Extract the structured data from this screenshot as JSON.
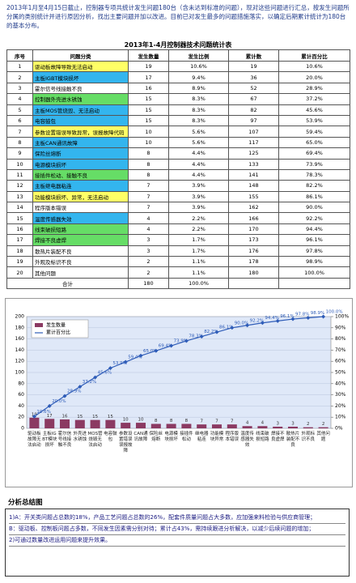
{
  "intro": "2013年1月至4月15日截止，控制器专项共统计发生问题180台（含未达到标准的问题），现对这些问题进行汇总，按发生问题所分属的类别统计并进行原因分析，找出主要问题并加以改进。目前已对发生最多的问题措施落实，以确定后期累计统计为180台的基本分布。",
  "table": {
    "title": "2013年1-4月控制器技术问题统计表",
    "columns": [
      "序号",
      "问题分类",
      "发生数量",
      "发生比例",
      "累计数",
      "累计百分比"
    ],
    "rows": [
      [
        1,
        "驱动板故障导致无法启动",
        19,
        "10.6%",
        19,
        "10.6%"
      ],
      [
        2,
        "主板IGBT模块损坏",
        17,
        "9.4%",
        36,
        "20.0%"
      ],
      [
        3,
        "霍尔信号线接触不良",
        16,
        "8.9%",
        52,
        "28.9%"
      ],
      [
        4,
        "控制器外壳进水锈蚀",
        15,
        "8.3%",
        67,
        "37.2%"
      ],
      [
        5,
        "主板MOS管烧毁、无法启动",
        15,
        "8.3%",
        82,
        "45.6%"
      ],
      [
        6,
        "电容鼓包",
        15,
        "8.3%",
        97,
        "53.9%"
      ],
      [
        7,
        "参数设置错误导致异常，误报故障代码",
        10,
        "5.6%",
        107,
        "59.4%"
      ],
      [
        8,
        "主板CAN通讯故障",
        10,
        "5.6%",
        117,
        "65.0%"
      ],
      [
        9,
        "保险丝熔断",
        8,
        "4.4%",
        125,
        "69.4%"
      ],
      [
        10,
        "电源模块损坏",
        8,
        "4.4%",
        133,
        "73.9%"
      ],
      [
        11,
        "接插件松动、接触不良",
        8,
        "4.4%",
        141,
        "78.3%"
      ],
      [
        12,
        "主板继电器粘连",
        7,
        "3.9%",
        148,
        "82.2%"
      ],
      [
        13,
        "功能模块损坏、异常，无法启动",
        7,
        "3.9%",
        155,
        "86.1%"
      ],
      [
        14,
        "程序版本错误",
        7,
        "3.9%",
        162,
        "90.0%"
      ],
      [
        15,
        "温度传感器失效",
        4,
        "2.2%",
        166,
        "92.2%"
      ],
      [
        16,
        "线束破损短路",
        4,
        "2.2%",
        170,
        "94.4%"
      ],
      [
        17,
        "焊接不良虚焊",
        3,
        "1.7%",
        173,
        "96.1%"
      ],
      [
        18,
        "散热片装配不良",
        3,
        "1.7%",
        176,
        "97.8%"
      ],
      [
        19,
        "外观及标识不良",
        2,
        "1.1%",
        178,
        "98.9%"
      ],
      [
        20,
        "其他问题",
        2,
        "1.1%",
        180,
        "100.0%"
      ]
    ],
    "row_fills": [
      "#ffff66",
      "#33b5ee",
      null,
      "#66dd66",
      "#33b5ee",
      "#33b5ee",
      "#ffff66",
      "#33b5ee",
      "#33b5ee",
      "#33b5ee",
      "#66dd66",
      "#33b5ee",
      "#ffff66",
      null,
      "#33b5ee",
      "#66dd66",
      "#66dd66",
      null,
      null,
      null
    ],
    "total": [
      "合计",
      180,
      "100.0%"
    ]
  },
  "chart_data": {
    "type": "bar",
    "categories": [
      "驱动板故障无法启动",
      "主板IGBT模块损坏",
      "霍尔信号线接触不良",
      "外壳进水锈蚀",
      "MOS管烧毁无法启动",
      "电容鼓包",
      "参数设置错误误报故障",
      "CAN通讯故障",
      "保险丝熔断",
      "电源模块损坏",
      "接插件松动",
      "继电器粘连",
      "功能模块异常",
      "程序版本错误",
      "温度传感器失效",
      "线束破损短路",
      "焊接不良虚焊",
      "散热片装配不良",
      "外观标识不良",
      "其他问题"
    ],
    "series": [
      {
        "name": "发生数量",
        "color": "#8b3a62",
        "values": [
          19,
          17,
          16,
          15,
          15,
          15,
          10,
          10,
          8,
          8,
          8,
          7,
          7,
          7,
          4,
          4,
          3,
          3,
          2,
          2
        ]
      },
      {
        "name": "累计百分比",
        "color": "#2e5cb8",
        "type": "line",
        "axis": "y2",
        "values": [
          10.6,
          20.0,
          28.9,
          37.2,
          45.6,
          53.9,
          59.4,
          65.0,
          69.4,
          73.9,
          78.3,
          82.2,
          86.1,
          90.0,
          92.2,
          94.4,
          96.1,
          97.8,
          98.9,
          100.0
        ],
        "value_labels": [
          "10.6%",
          "20.0%",
          "28.9%",
          "37.2%",
          "45.6%",
          "53.9%",
          "59.4%",
          "65.0%",
          "69.4%",
          "73.9%",
          "78.3%",
          "82.2%",
          "86.1%",
          "90.0%",
          "92.2%",
          "94.4%",
          "96.1%",
          "97.8%",
          "98.9%",
          "100.0%"
        ]
      }
    ],
    "ylim": [
      0,
      200
    ],
    "yticks": [
      0,
      20,
      40,
      60,
      80,
      100,
      120,
      140,
      160,
      180,
      200
    ],
    "y2lim": [
      0,
      100
    ],
    "y2ticks": [
      {
        "value": 0,
        "label": "0%"
      },
      {
        "value": 10,
        "label": "10%"
      },
      {
        "value": 20,
        "label": "20%"
      },
      {
        "value": 30,
        "label": "30%"
      },
      {
        "value": 40,
        "label": "40%"
      },
      {
        "value": 50,
        "label": "50%"
      },
      {
        "value": 60,
        "label": "60%"
      },
      {
        "value": 70,
        "label": "70%"
      },
      {
        "value": 80,
        "label": "80%"
      },
      {
        "value": 90,
        "label": "90%"
      },
      {
        "value": 100,
        "label": "100%"
      }
    ],
    "grid": true,
    "legend": "top-left"
  },
  "summary": {
    "heading": "分析总结图",
    "items": [
      "1)A：开关类问题占总数的18%，产品工艺问题占总数的26%，配套件质量问题占大多数，应加强来料检验与供应商管理；",
      "B：驱动板、控制板问题占多数，不同发生因素需分别对待；累计占43%，需持续跟进分析解决，以减少后续问题的增加；",
      "2)可通过数量改进运用问题来提升效果。"
    ]
  }
}
